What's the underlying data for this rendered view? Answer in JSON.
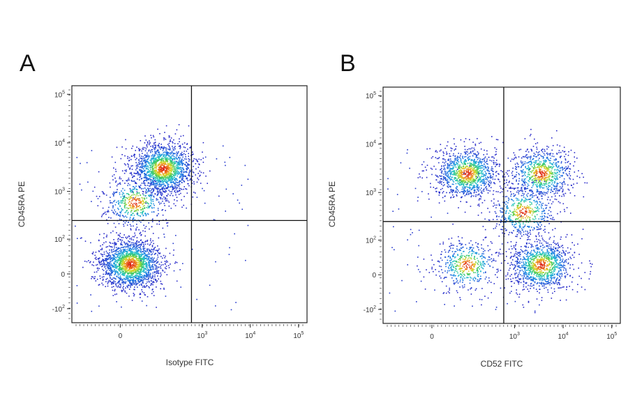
{
  "chart_data": [
    {
      "type": "scatter",
      "panel": "A",
      "xlabel": "Isotype FITC",
      "ylabel": "CD45RA PE",
      "x_scale": "biexponential",
      "y_scale": "biexponential",
      "xlim": [
        -200,
        150000
      ],
      "ylim": [
        -200,
        150000
      ],
      "x_ticks": [
        {
          "value": 0,
          "label": "0"
        },
        {
          "value": 1000,
          "label": "10",
          "exp": "3"
        },
        {
          "value": 10000,
          "label": "10",
          "exp": "4"
        },
        {
          "value": 100000,
          "label": "10",
          "exp": "5"
        }
      ],
      "y_ticks": [
        {
          "value": -100,
          "label": "-10",
          "exp": "2"
        },
        {
          "value": 0,
          "label": "0"
        },
        {
          "value": 100,
          "label": "10",
          "exp": "2"
        },
        {
          "value": 1000,
          "label": "10",
          "exp": "3"
        },
        {
          "value": 10000,
          "label": "10",
          "exp": "4"
        },
        {
          "value": 100000,
          "label": "10",
          "exp": "5"
        }
      ],
      "quadrant_gate": {
        "x": 600,
        "y": 250
      },
      "clusters": [
        {
          "x": 20,
          "y": 20,
          "count": 1800
        },
        {
          "x": 150,
          "y": 3000,
          "count": 1600
        },
        {
          "x": 30,
          "y": 600,
          "count": 500
        }
      ]
    },
    {
      "type": "scatter",
      "panel": "B",
      "xlabel": "CD52 FITC",
      "ylabel": "CD45RA PE",
      "x_scale": "biexponential",
      "y_scale": "biexponential",
      "xlim": [
        -200,
        150000
      ],
      "ylim": [
        -200,
        150000
      ],
      "x_ticks": [
        {
          "value": 0,
          "label": "0"
        },
        {
          "value": 1000,
          "label": "10",
          "exp": "3"
        },
        {
          "value": 10000,
          "label": "10",
          "exp": "4"
        },
        {
          "value": 100000,
          "label": "10",
          "exp": "5"
        }
      ],
      "y_ticks": [
        {
          "value": -100,
          "label": "-10",
          "exp": "2"
        },
        {
          "value": 0,
          "label": "0"
        },
        {
          "value": 100,
          "label": "10",
          "exp": "2"
        },
        {
          "value": 1000,
          "label": "10",
          "exp": "3"
        },
        {
          "value": 10000,
          "label": "10",
          "exp": "4"
        },
        {
          "value": 100000,
          "label": "10",
          "exp": "5"
        }
      ],
      "quadrant_gate": {
        "x": 600,
        "y": 250
      },
      "clusters": [
        {
          "x": 100,
          "y": 2500,
          "count": 1100
        },
        {
          "x": 3500,
          "y": 2500,
          "count": 800
        },
        {
          "x": 3500,
          "y": 20,
          "count": 1100
        },
        {
          "x": 100,
          "y": 20,
          "count": 500
        },
        {
          "x": 1500,
          "y": 400,
          "count": 500
        }
      ]
    }
  ]
}
